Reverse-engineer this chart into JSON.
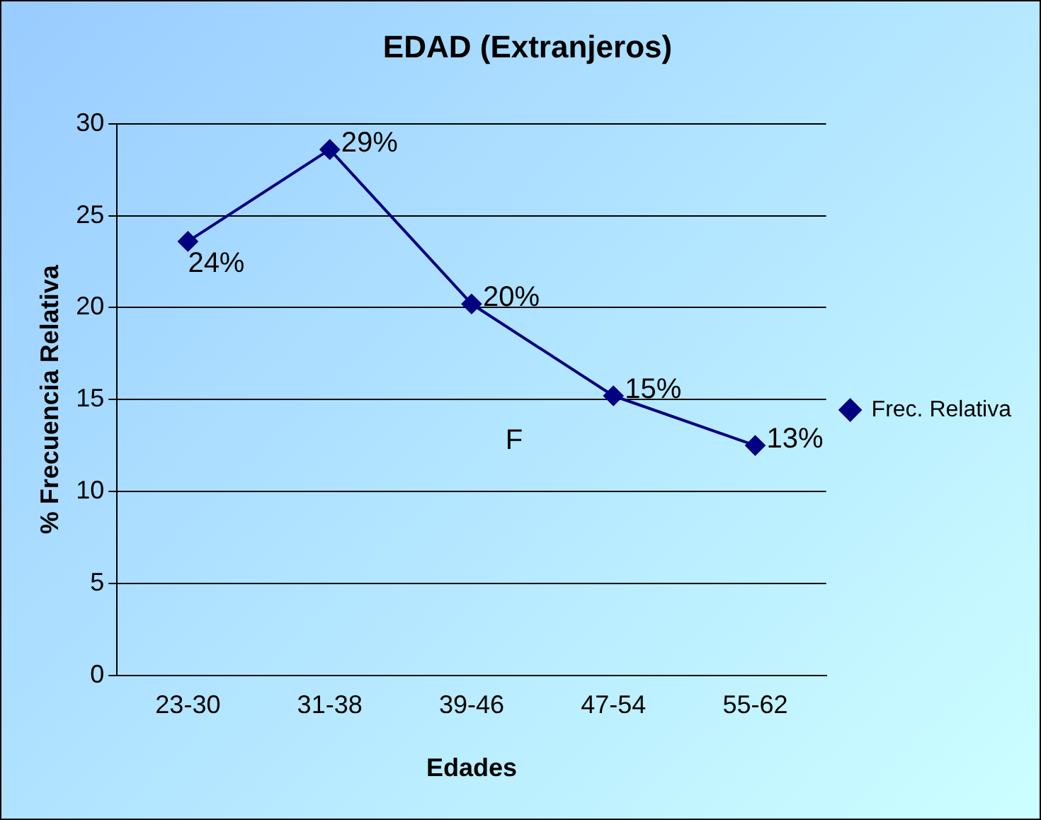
{
  "chart_data": {
    "type": "line",
    "title": "EDAD (Extranjeros)",
    "xlabel": "Edades",
    "ylabel": "% Frecuencia Relativa",
    "categories": [
      "23-30",
      "31-38",
      "39-46",
      "47-54",
      "55-62"
    ],
    "series": [
      {
        "name": "Frec. Relativa",
        "color": "#000080",
        "values": [
          23.6,
          28.6,
          20.2,
          15.2,
          12.5
        ],
        "value_labels": [
          "24%",
          "29%",
          "20%",
          "15%",
          "13%"
        ]
      }
    ],
    "ylim": [
      0,
      30
    ],
    "yticks": [
      0,
      5,
      10,
      15,
      20,
      25,
      30
    ],
    "grid": "y",
    "legend": "right",
    "marker": "diamond",
    "line_style": "solid",
    "annotations": [
      "F"
    ]
  }
}
